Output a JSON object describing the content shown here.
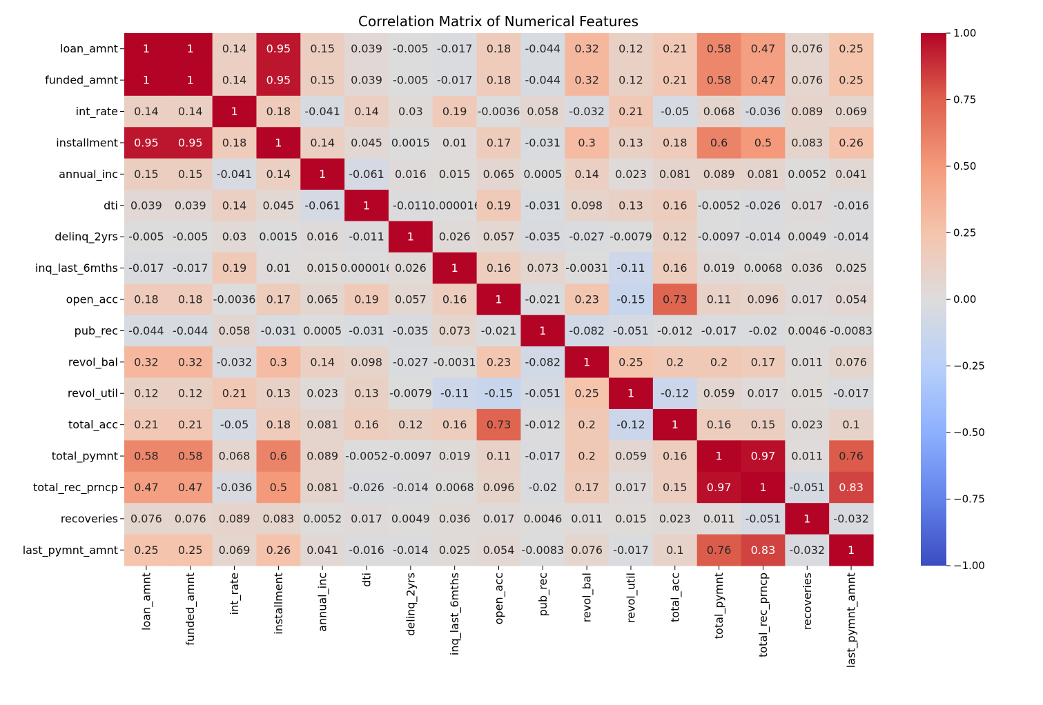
{
  "chart_data": {
    "type": "heatmap",
    "title": "Correlation Matrix of Numerical Features",
    "colormap": "coolwarm",
    "vmin": -1,
    "vmax": 1,
    "rows": [
      "loan_amnt",
      "funded_amnt",
      "int_rate",
      "installment",
      "annual_inc",
      "dti",
      "delinq_2yrs",
      "inq_last_6mths",
      "open_acc",
      "pub_rec",
      "revol_bal",
      "revol_util",
      "total_acc",
      "total_pymnt",
      "total_rec_prncp",
      "recoveries",
      "last_pymnt_amnt"
    ],
    "columns": [
      "loan_amnt",
      "funded_amnt",
      "int_rate",
      "installment",
      "annual_inc",
      "dti",
      "delinq_2yrs",
      "inq_last_6mths",
      "open_acc",
      "pub_rec",
      "revol_bal",
      "revol_util",
      "total_acc",
      "total_pymnt",
      "total_rec_prncp",
      "recoveries",
      "last_pymnt_amnt"
    ],
    "values": [
      [
        1,
        1,
        0.14,
        0.95,
        0.15,
        0.039,
        -0.005,
        -0.017,
        0.18,
        -0.044,
        0.32,
        0.12,
        0.21,
        0.58,
        0.47,
        0.076,
        0.25
      ],
      [
        1,
        1,
        0.14,
        0.95,
        0.15,
        0.039,
        -0.005,
        -0.017,
        0.18,
        -0.044,
        0.32,
        0.12,
        0.21,
        0.58,
        0.47,
        0.076,
        0.25
      ],
      [
        0.14,
        0.14,
        1,
        0.18,
        -0.041,
        0.14,
        0.03,
        0.19,
        -0.0036,
        0.058,
        -0.032,
        0.21,
        -0.05,
        0.068,
        -0.036,
        0.089,
        0.069
      ],
      [
        0.95,
        0.95,
        0.18,
        1,
        0.14,
        0.045,
        0.0015,
        0.01,
        0.17,
        -0.031,
        0.3,
        0.13,
        0.18,
        0.6,
        0.5,
        0.083,
        0.26
      ],
      [
        0.15,
        0.15,
        -0.041,
        0.14,
        1,
        -0.061,
        0.016,
        0.015,
        0.065,
        0.0005,
        0.14,
        0.023,
        0.081,
        0.089,
        0.081,
        0.0052,
        0.041
      ],
      [
        0.039,
        0.039,
        0.14,
        0.045,
        -0.061,
        1,
        -0.011,
        1.6e-05,
        0.19,
        -0.031,
        0.098,
        0.13,
        0.16,
        -0.0052,
        -0.026,
        0.017,
        -0.016
      ],
      [
        -0.005,
        -0.005,
        0.03,
        0.0015,
        0.016,
        -0.011,
        1,
        0.026,
        0.057,
        -0.035,
        -0.027,
        -0.0079,
        0.12,
        -0.0097,
        -0.014,
        0.0049,
        -0.014
      ],
      [
        -0.017,
        -0.017,
        0.19,
        0.01,
        0.015,
        1.6e-05,
        0.026,
        1,
        0.16,
        0.073,
        -0.0031,
        -0.11,
        0.16,
        0.019,
        0.0068,
        0.036,
        0.025
      ],
      [
        0.18,
        0.18,
        -0.0036,
        0.17,
        0.065,
        0.19,
        0.057,
        0.16,
        1,
        -0.021,
        0.23,
        -0.15,
        0.73,
        0.11,
        0.096,
        0.017,
        0.054
      ],
      [
        -0.044,
        -0.044,
        0.058,
        -0.031,
        0.0005,
        -0.031,
        -0.035,
        0.073,
        -0.021,
        1,
        -0.082,
        -0.051,
        -0.012,
        -0.017,
        -0.02,
        0.0046,
        -0.0083
      ],
      [
        0.32,
        0.32,
        -0.032,
        0.3,
        0.14,
        0.098,
        -0.027,
        -0.0031,
        0.23,
        -0.082,
        1,
        0.25,
        0.2,
        0.2,
        0.17,
        0.011,
        0.076
      ],
      [
        0.12,
        0.12,
        0.21,
        0.13,
        0.023,
        0.13,
        -0.0079,
        -0.11,
        -0.15,
        -0.051,
        0.25,
        1,
        -0.12,
        0.059,
        0.017,
        0.015,
        -0.017
      ],
      [
        0.21,
        0.21,
        -0.05,
        0.18,
        0.081,
        0.16,
        0.12,
        0.16,
        0.73,
        -0.012,
        0.2,
        -0.12,
        1,
        0.16,
        0.15,
        0.023,
        0.1
      ],
      [
        0.58,
        0.58,
        0.068,
        0.6,
        0.089,
        -0.0052,
        -0.0097,
        0.019,
        0.11,
        -0.017,
        0.2,
        0.059,
        0.16,
        1,
        0.97,
        0.011,
        0.76
      ],
      [
        0.47,
        0.47,
        -0.036,
        0.5,
        0.081,
        -0.026,
        -0.014,
        0.0068,
        0.096,
        -0.02,
        0.17,
        0.017,
        0.15,
        0.97,
        1,
        -0.051,
        0.83
      ],
      [
        0.076,
        0.076,
        0.089,
        0.083,
        0.0052,
        0.017,
        0.0049,
        0.036,
        0.017,
        0.0046,
        0.011,
        0.015,
        0.023,
        0.011,
        -0.051,
        1,
        -0.032
      ],
      [
        0.25,
        0.25,
        0.069,
        0.26,
        0.041,
        -0.016,
        -0.014,
        0.025,
        0.054,
        -0.0083,
        0.076,
        -0.017,
        0.1,
        0.76,
        0.83,
        -0.032,
        1
      ]
    ],
    "colorbar_ticks": [
      "1.00",
      "0.75",
      "0.50",
      "0.25",
      "0.00",
      "−0.25",
      "−0.50",
      "−0.75",
      "−1.00"
    ],
    "colorbar_tick_values": [
      1,
      0.75,
      0.5,
      0.25,
      0,
      -0.25,
      -0.5,
      -0.75,
      -1
    ]
  }
}
